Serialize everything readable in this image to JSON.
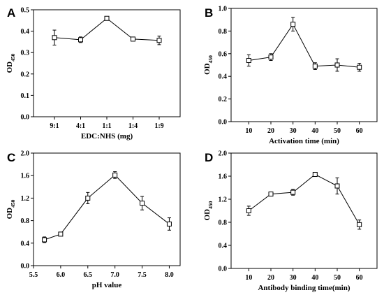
{
  "chart_data": [
    {
      "type": "line",
      "panel": "A",
      "xlabel": "EDC:NHS (mg)",
      "ylabel": {
        "main": "OD",
        "sub": "450"
      },
      "categories": [
        "9:1",
        "4:1",
        "1:1",
        "1:4",
        "1:9"
      ],
      "ylim": [
        0.0,
        0.5
      ],
      "yticks": [
        "0.0",
        "0.1",
        "0.2",
        "0.3",
        "0.4",
        "0.5"
      ],
      "series": [
        {
          "values": [
            0.37,
            0.36,
            0.46,
            0.363,
            0.357
          ],
          "errors": [
            0.035,
            0.013,
            0.009,
            0.005,
            0.02
          ]
        }
      ]
    },
    {
      "type": "line",
      "panel": "B",
      "xlabel": "Activation time (min)",
      "ylabel": {
        "main": "OD",
        "sub": "450"
      },
      "categories": [
        "10",
        "20",
        "30",
        "40",
        "50",
        "60"
      ],
      "ylim": [
        0.0,
        1.0
      ],
      "yticks": [
        "0.0",
        "0.2",
        "0.4",
        "0.6",
        "0.8",
        "1.0"
      ],
      "series": [
        {
          "values": [
            0.54,
            0.57,
            0.86,
            0.49,
            0.5,
            0.48
          ],
          "errors": [
            0.05,
            0.03,
            0.06,
            0.03,
            0.055,
            0.035
          ]
        }
      ]
    },
    {
      "type": "line",
      "panel": "C",
      "xlabel": "pH value",
      "ylabel": {
        "main": "OD",
        "sub": "450"
      },
      "x": [
        5.7,
        6.0,
        6.5,
        7.0,
        7.5,
        8.0
      ],
      "xlim": [
        5.5,
        8.2
      ],
      "xticks": [
        "5.5",
        "6.0",
        "6.5",
        "7.0",
        "7.5",
        "8.0"
      ],
      "ylim": [
        0.0,
        2.0
      ],
      "yticks": [
        "0.0",
        "0.4",
        "0.8",
        "1.2",
        "1.6",
        "2.0"
      ],
      "series": [
        {
          "values": [
            0.46,
            0.56,
            1.2,
            1.61,
            1.11,
            0.74
          ],
          "errors": [
            0.05,
            0.02,
            0.1,
            0.06,
            0.12,
            0.11
          ]
        }
      ]
    },
    {
      "type": "line",
      "panel": "D",
      "xlabel": "Antibody binding time(min)",
      "ylabel": {
        "main": "OD",
        "sub": "450"
      },
      "categories": [
        "10",
        "20",
        "30",
        "40",
        "50",
        "60"
      ],
      "ylim": [
        0.0,
        2.0
      ],
      "yticks": [
        "0.0",
        "0.4",
        "0.8",
        "1.2",
        "1.6",
        "2.0"
      ],
      "series": [
        {
          "values": [
            1.0,
            1.29,
            1.32,
            1.63,
            1.43,
            0.76
          ],
          "errors": [
            0.08,
            0.03,
            0.05,
            0.02,
            0.14,
            0.08
          ]
        }
      ]
    }
  ]
}
